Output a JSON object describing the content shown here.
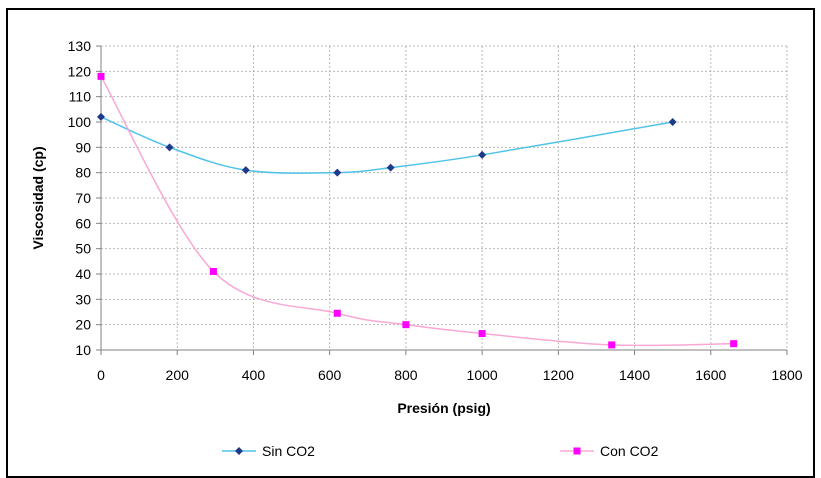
{
  "chart_data": {
    "type": "scatter",
    "title": "",
    "xlabel": "Presión (psig)",
    "ylabel": "Viscosidad (cp)",
    "xlim": [
      0,
      1800
    ],
    "ylim": [
      10,
      130
    ],
    "x_ticks": [
      0,
      200,
      400,
      600,
      800,
      1000,
      1200,
      1400,
      1600,
      1800
    ],
    "y_ticks": [
      10,
      20,
      30,
      40,
      50,
      60,
      70,
      80,
      90,
      100,
      110,
      120,
      130
    ],
    "grid": true,
    "legend_position": "bottom",
    "series": [
      {
        "name": "Sin CO2",
        "color": "#4fc3e8",
        "marker_color": "#1f3a8a",
        "marker": "diamond",
        "x": [
          0,
          180,
          380,
          620,
          760,
          1000,
          1500
        ],
        "y": [
          102,
          90,
          81,
          80,
          82,
          87,
          100
        ]
      },
      {
        "name": "Con CO2",
        "color": "#f9a8d4",
        "marker_color": "#ff00ff",
        "marker": "square",
        "x": [
          0,
          295,
          620,
          800,
          1000,
          1340,
          1660
        ],
        "y": [
          118,
          41,
          24.5,
          20,
          16.5,
          12,
          12.5
        ]
      }
    ]
  }
}
